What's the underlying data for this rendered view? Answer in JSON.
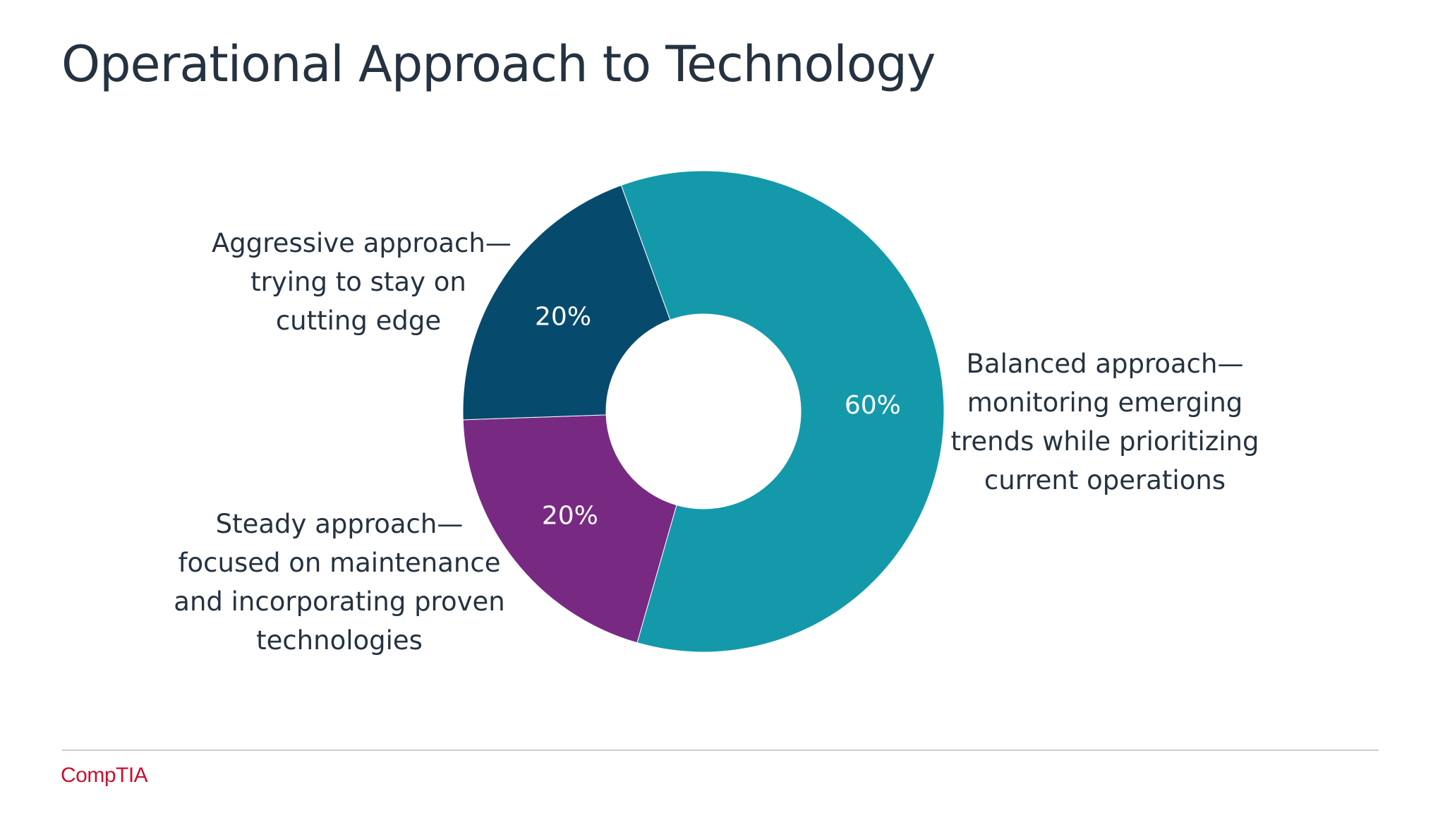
{
  "slide": {
    "title": "Operational Approach to Technology",
    "logo_text": "CompTIA"
  },
  "colors": {
    "title": "#253240",
    "balanced": "#1499aa",
    "aggressive": "#064b6e",
    "steady": "#782a82",
    "logo": "#c8102e",
    "rule": "#c8ccd2"
  },
  "chart_data": {
    "type": "pie",
    "donut": true,
    "title": "Operational Approach to Technology",
    "slices": [
      {
        "key": "balanced",
        "value": 60,
        "label": "60%",
        "color": "#1499aa",
        "category_lines": [
          "Balanced approach—",
          "monitoring emerging",
          "trends while prioritizing",
          "current operations"
        ]
      },
      {
        "key": "steady",
        "value": 20,
        "label": "20%",
        "color": "#782a82",
        "category_lines": [
          "Steady approach—",
          "focused on maintenance",
          "and incorporating proven",
          "technologies"
        ]
      },
      {
        "key": "aggressive",
        "value": 20,
        "label": "20%",
        "color": "#064b6e",
        "category_lines": [
          "Aggressive approach—",
          "trying to stay on",
          "cutting edge"
        ]
      }
    ]
  }
}
